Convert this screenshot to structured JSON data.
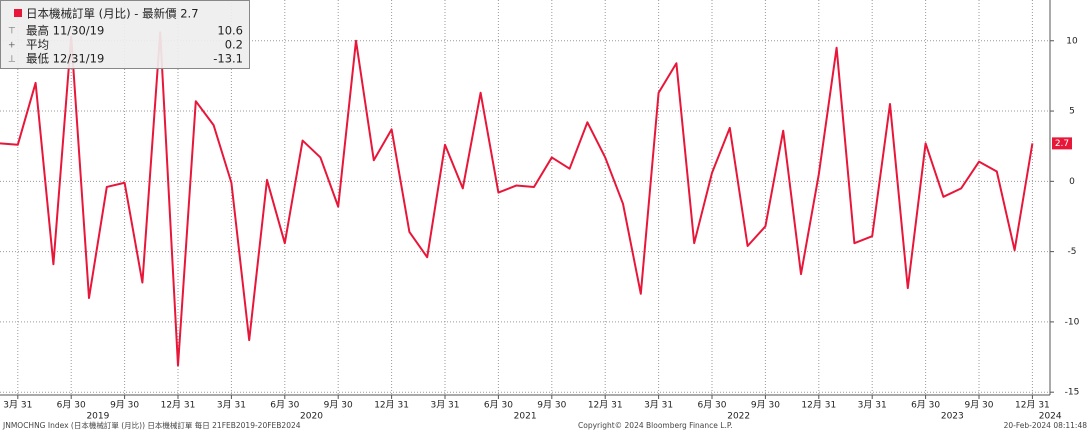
{
  "chart_data": {
    "type": "line",
    "title": "日本機械訂單 (月比) - 最新價 2.7",
    "stats": [
      {
        "label": "最高 11/30/19",
        "value": 10.6
      },
      {
        "label": "平均",
        "value": 0.2
      },
      {
        "label": "最低 12/31/19",
        "value": -13.1
      }
    ],
    "categories": [
      null,
      "3月 31",
      null,
      null,
      "6月 30",
      null,
      null,
      "9月 30",
      null,
      null,
      "12月 31",
      null,
      null,
      "3月 31",
      null,
      null,
      "6月 30",
      null,
      null,
      "9月 30",
      null,
      null,
      "12月 31",
      null,
      null,
      "3月 31",
      null,
      null,
      "6月 30",
      null,
      null,
      "9月 30",
      null,
      null,
      "12月 31",
      null,
      null,
      "3月 31",
      null,
      null,
      "6月 30",
      null,
      null,
      "9月 30",
      null,
      null,
      "12月 31",
      null,
      null,
      "3月 31",
      null,
      null,
      "6月 30",
      null,
      null,
      "9月 30",
      null,
      null,
      "12月 31"
    ],
    "year_labels": [
      "2019",
      "2020",
      "2021",
      "2022",
      "2023",
      "2024"
    ],
    "values": [
      2.7,
      2.6,
      7.0,
      -5.9,
      10.3,
      -8.3,
      -0.4,
      -0.1,
      -7.2,
      10.6,
      -13.1,
      5.7,
      4.0,
      -0.1,
      -11.3,
      0.1,
      -4.4,
      2.9,
      1.7,
      -1.8,
      10.0,
      1.5,
      3.7,
      -3.6,
      -5.4,
      2.6,
      -0.5,
      6.3,
      -0.8,
      -0.3,
      -0.4,
      1.7,
      0.9,
      4.2,
      1.7,
      -1.6,
      -8.0,
      6.3,
      8.4,
      -4.4,
      0.6,
      3.8,
      -4.6,
      -3.2,
      3.6,
      -6.6,
      0.5,
      9.5,
      -4.4,
      -3.9,
      5.5,
      -7.6,
      2.7,
      -1.1,
      -0.5,
      1.4,
      0.7,
      -4.9,
      2.7
    ],
    "color": "#e8173a",
    "ylim": [
      -15.2,
      12.9
    ],
    "yticks": [
      10,
      5,
      0,
      -5,
      -10,
      -15
    ],
    "grid": true,
    "footer": [
      "JNMOCHNG Index (日本機械訂單 (月比)) 日本機械訂單  每日 21FEB2019-20FEB2024",
      "Copyright© 2024 Bloomberg Finance L.P.",
      "20-Feb-2024 08:11:48"
    ]
  }
}
